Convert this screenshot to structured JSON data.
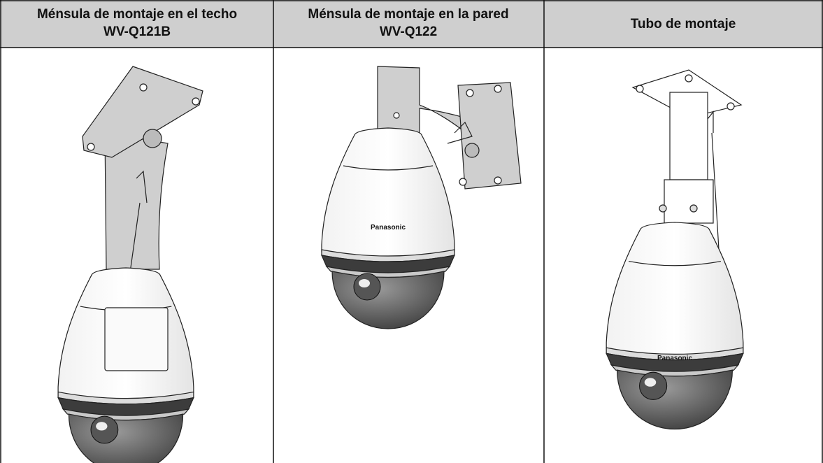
{
  "table": {
    "header": [
      {
        "title": "Ménsula de montaje en el techo",
        "model": "WV-Q121B"
      },
      {
        "title": "Ménsula de montaje en la pared",
        "model": "WV-Q122"
      },
      {
        "title": "Tubo de montaje"
      }
    ],
    "brand_labels": [
      "Panasonic",
      "Panasonic"
    ]
  }
}
